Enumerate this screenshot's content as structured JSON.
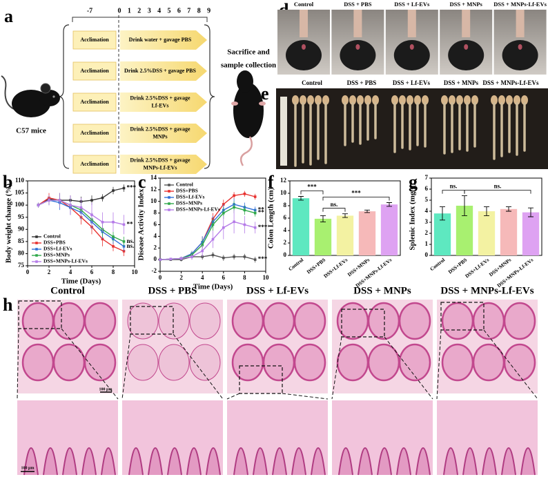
{
  "panel_a": {
    "label": "a",
    "timeline": [
      -7,
      0,
      1,
      2,
      3,
      4,
      5,
      6,
      7,
      8,
      9
    ],
    "rows": [
      {
        "left": "Acclimation",
        "right": [
          "Drink water + gavage PBS"
        ]
      },
      {
        "left": "Acclimation",
        "right": [
          "Drink 2.5%DSS + gavage PBS"
        ]
      },
      {
        "left": "Acclimation",
        "right": [
          "Drink 2.5%DSS + gavage",
          "Lf-EVs"
        ]
      },
      {
        "left": "Acclimation",
        "right": [
          "Drink 2.5%DSS + gavage",
          "MNPs"
        ]
      },
      {
        "left": "Acclimation",
        "right": [
          "Drink 2.5%DSS + gavage",
          "MNPs-Lf-EVs"
        ]
      }
    ],
    "mouse_label": "C57 mice",
    "end_label": [
      "Sacrifice and",
      "sample collection"
    ]
  },
  "panel_d": {
    "label": "d",
    "groups": [
      "Control",
      "DSS + PBS",
      "DSS + Lf-EVs",
      "DSS + MNPs",
      "DSS + MNPs-Lf-EVs"
    ]
  },
  "panel_e": {
    "label": "e",
    "groups": [
      "Control",
      "DSS + PBS",
      "DSS + Lf-EVs",
      "DSS + MNPs",
      "DSS + MNPs-Lf-EVs"
    ]
  },
  "panel_h": {
    "label": "h",
    "groups": [
      "Control",
      "DSS + PBS",
      "DSS + Lf-EVs",
      "DSS + MNPs",
      "DSS + MNPs-Lf-EVs"
    ],
    "scale_bar": "100 μm"
  },
  "chart_data": [
    {
      "type": "line",
      "panel_label": "b",
      "ylabel": "Body weight change (%)",
      "xlabel": "Time (Days)",
      "xlim": [
        0,
        10
      ],
      "xticks": [
        0,
        2,
        4,
        6,
        8,
        10
      ],
      "ylim": [
        75,
        110
      ],
      "yticks": [
        75,
        80,
        85,
        90,
        95,
        100,
        105,
        110
      ],
      "x": [
        1,
        2,
        3,
        4,
        5,
        6,
        7,
        8,
        9
      ],
      "legend": "lower left",
      "series": [
        {
          "name": "Control",
          "color": "#333333",
          "values": [
            100,
            102.5,
            102,
            102,
            101.5,
            102,
            103,
            106,
            107
          ],
          "errors": [
            0.5,
            1,
            1.5,
            2,
            2,
            2,
            1.5,
            1.5,
            1.5
          ]
        },
        {
          "name": "DSS+PBS",
          "color": "#e8312f",
          "values": [
            100,
            103,
            102,
            99,
            95,
            91,
            86,
            83,
            81
          ],
          "errors": [
            1,
            2,
            3,
            3,
            3,
            3,
            3,
            2,
            2
          ]
        },
        {
          "name": "DSS+Lf-EVs",
          "color": "#2f6fd8",
          "values": [
            100,
            102,
            101,
            99,
            97,
            93,
            89,
            86,
            83
          ],
          "errors": [
            1,
            2,
            3,
            3,
            3,
            3,
            3,
            2,
            2
          ]
        },
        {
          "name": "DSS+MNPs",
          "color": "#2fa84a",
          "values": [
            100,
            102,
            102,
            100,
            98,
            94,
            90,
            87,
            85
          ],
          "errors": [
            1,
            2,
            3,
            3,
            3,
            3,
            3,
            2,
            2
          ]
        },
        {
          "name": "DSS+MNPs-Lf-EVs",
          "color": "#b57be8",
          "values": [
            100,
            102,
            102,
            100,
            99,
            96,
            93,
            93,
            92
          ],
          "errors": [
            1,
            2,
            3,
            4,
            4,
            5,
            4,
            4,
            4
          ]
        }
      ],
      "annotations": [
        {
          "text": "***",
          "series": "Control"
        },
        {
          "text": "**",
          "series": "DSS+MNPs-Lf-EVs"
        },
        {
          "text": "ns.",
          "series": "DSS+MNPs"
        },
        {
          "text": "ns.",
          "series": "DSS+Lf-EVs"
        }
      ]
    },
    {
      "type": "line",
      "panel_label": "c",
      "ylabel": "Disease Activity Index",
      "xlabel": "Time (Days)",
      "xlim": [
        0,
        10
      ],
      "xticks": [
        0,
        2,
        4,
        6,
        8,
        10
      ],
      "ylim": [
        -2,
        14
      ],
      "yticks": [
        -2,
        0,
        2,
        4,
        6,
        8,
        10,
        12,
        14
      ],
      "x": [
        0,
        1,
        2,
        3,
        4,
        5,
        6,
        7,
        8,
        9
      ],
      "legend": "upper left",
      "series": [
        {
          "name": "Control",
          "color": "#555555",
          "values": [
            0,
            0,
            0,
            0.5,
            0.5,
            0.8,
            0.3,
            0.5,
            0.5,
            0
          ],
          "errors": [
            0,
            0.2,
            0.3,
            0.5,
            0.5,
            0.5,
            0.5,
            0.5,
            0.5,
            0.5
          ]
        },
        {
          "name": "DSS+PBS",
          "color": "#e8312f",
          "values": [
            0,
            0.1,
            0.2,
            1,
            3,
            7,
            9.5,
            11,
            11.3,
            10.8
          ],
          "errors": [
            0,
            0.2,
            0.3,
            0.5,
            1,
            1,
            0.8,
            0.6,
            0.5,
            0.5
          ]
        },
        {
          "name": "DSS+Lf-EVs",
          "color": "#2f6fd8",
          "values": [
            0,
            0.1,
            0.2,
            1,
            3,
            6.5,
            8.5,
            9.5,
            9,
            8.5
          ],
          "errors": [
            0,
            0.2,
            0.3,
            0.5,
            1,
            1,
            1,
            1,
            0.8,
            0.6
          ]
        },
        {
          "name": "DSS+MNPs",
          "color": "#2fa84a",
          "values": [
            0,
            0.1,
            0.2,
            0.8,
            2.5,
            6,
            8,
            9,
            8.5,
            8
          ],
          "errors": [
            0,
            0.2,
            0.3,
            0.5,
            1,
            1,
            1,
            1,
            0.8,
            0.6
          ]
        },
        {
          "name": "DSS+MNPs-Lf-EVs",
          "color": "#b57be8",
          "values": [
            0,
            0.1,
            0.2,
            0.5,
            1.5,
            3.5,
            5.5,
            6.5,
            6,
            5.5
          ],
          "errors": [
            0,
            0.2,
            0.3,
            0.5,
            1,
            1.5,
            2,
            2,
            1.5,
            1
          ]
        }
      ],
      "annotations": [
        {
          "text": "**",
          "series": "DSS+Lf-EVs"
        },
        {
          "text": "**",
          "series": "DSS+MNPs"
        },
        {
          "text": "***",
          "series": "DSS+MNPs-Lf-EVs"
        },
        {
          "text": "***",
          "series": "Control"
        }
      ]
    },
    {
      "type": "bar",
      "panel_label": "f",
      "ylabel": "Colon Length (cm)",
      "categories": [
        "Control",
        "DSS+PBS",
        "DSS+Lf-EVs",
        "DSS+MNPs",
        "DSS+MNPs-Lf-EVs"
      ],
      "values": [
        9.2,
        5.9,
        6.4,
        7.1,
        8.2
      ],
      "errors": [
        0.3,
        0.5,
        0.3,
        0.2,
        0.3
      ],
      "colors": [
        "#5ee8c0",
        "#a8f070",
        "#f3f2a2",
        "#f6b9b9",
        "#dea2f2"
      ],
      "ylim": [
        0,
        12
      ],
      "yticks": [
        0,
        2,
        4,
        6,
        8,
        10,
        12
      ],
      "annotations": [
        {
          "text": "***",
          "between": [
            "Control",
            "DSS+PBS"
          ]
        },
        {
          "text": "ns.",
          "between": [
            "DSS+PBS",
            "DSS+Lf-EVs"
          ]
        },
        {
          "text": "***",
          "between": [
            "DSS+PBS",
            "DSS+MNPs-Lf-EVs"
          ]
        }
      ]
    },
    {
      "type": "bar",
      "panel_label": "g",
      "ylabel": "Splenic Index (mg/g)",
      "categories": [
        "Control",
        "DSS+PBS",
        "DSS+Lf-EVs",
        "DSS+MNPs",
        "DSS+MNPs-Lf-EVs"
      ],
      "values": [
        3.8,
        4.5,
        4.0,
        4.2,
        3.9
      ],
      "errors": [
        0.6,
        0.9,
        0.4,
        0.2,
        0.4
      ],
      "colors": [
        "#5ee8c0",
        "#a8f070",
        "#f3f2a2",
        "#f6b9b9",
        "#dea2f2"
      ],
      "ylim": [
        0,
        7
      ],
      "yticks": [
        0,
        1,
        2,
        3,
        4,
        5,
        6,
        7
      ],
      "annotations": [
        {
          "text": "ns.",
          "between": [
            "Control",
            "DSS+PBS"
          ]
        },
        {
          "text": "ns.",
          "between": [
            "DSS+PBS",
            "DSS+MNPs-Lf-EVs"
          ]
        }
      ]
    }
  ]
}
